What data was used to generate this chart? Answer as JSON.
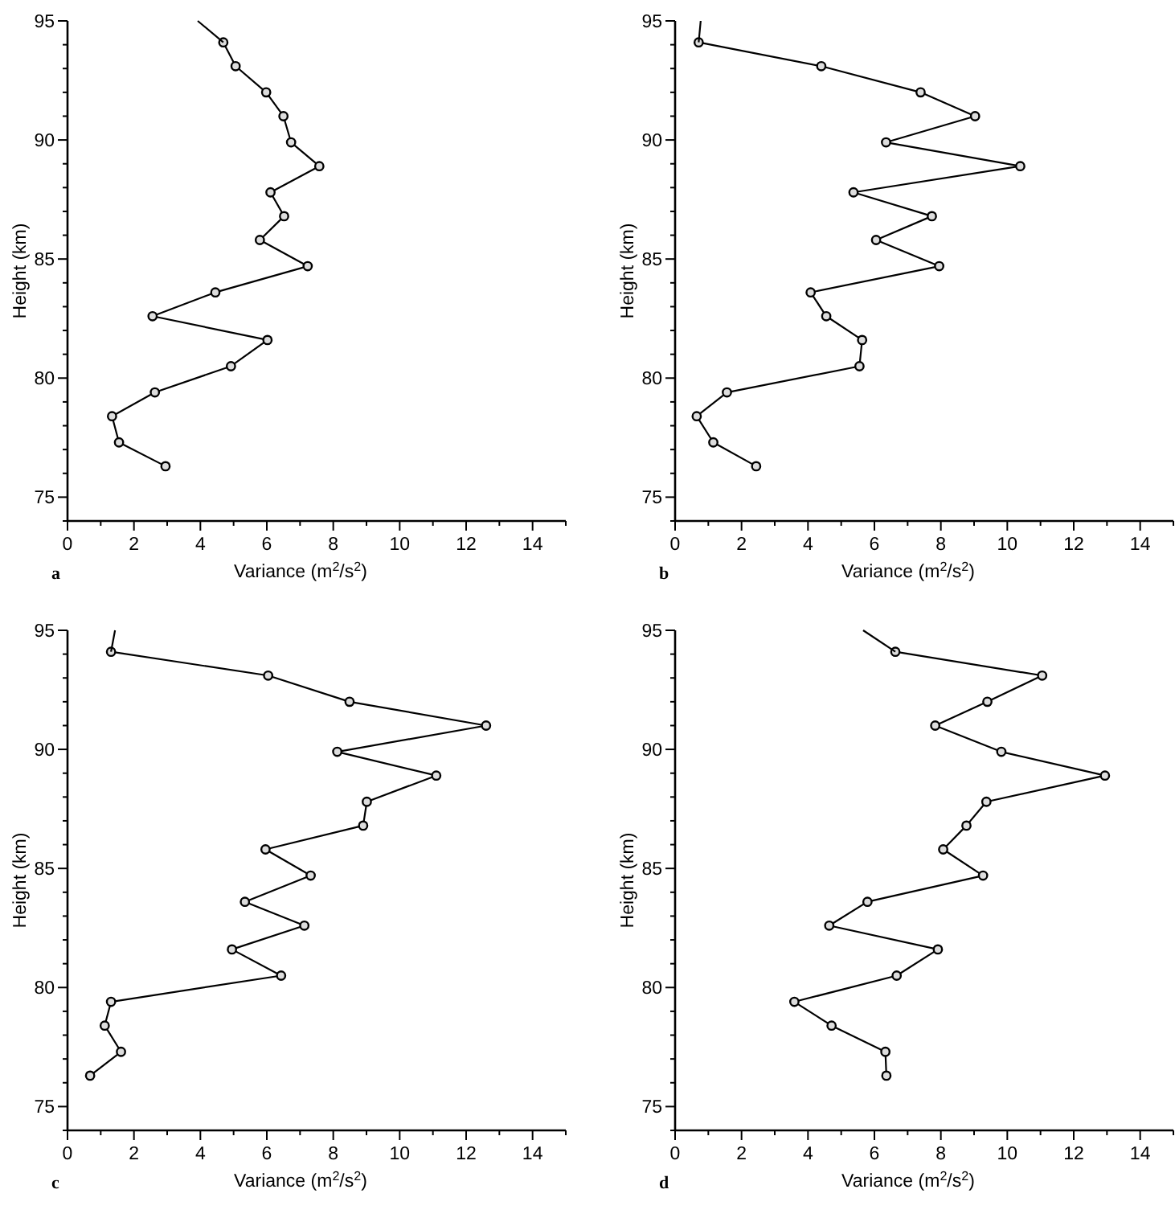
{
  "chart_data": [
    {
      "type": "line",
      "xlabel": "Variance (m$^{2}$/s$^{2}$)",
      "ylabel": "Height (km)",
      "annotations": [
        "a"
      ],
      "xlim": [
        0,
        15
      ],
      "xticks": [
        0,
        {
          "value": 1,
          "label": null
        },
        2,
        {
          "value": 3,
          "label": null
        },
        4,
        {
          "value": 5,
          "label": null
        },
        6,
        {
          "value": 7,
          "label": null
        },
        8,
        {
          "value": 9,
          "label": null
        },
        10,
        {
          "value": 11,
          "label": null
        },
        12,
        {
          "value": 13,
          "label": null
        },
        14,
        {
          "value": 15,
          "label": null
        }
      ],
      "ylim": [
        74,
        95
      ],
      "yticks": [
        {
          "value": 74,
          "label": null
        },
        75,
        {
          "value": 76,
          "label": null
        },
        {
          "value": 77,
          "label": null
        },
        {
          "value": 78,
          "label": null
        },
        {
          "value": 79,
          "label": null
        },
        80,
        {
          "value": 81,
          "label": null
        },
        {
          "value": 82,
          "label": null
        },
        {
          "value": 83,
          "label": null
        },
        {
          "value": 84,
          "label": null
        },
        85,
        {
          "value": 86,
          "label": null
        },
        {
          "value": 87,
          "label": null
        },
        {
          "value": 88,
          "label": null
        },
        {
          "value": 89,
          "label": null
        },
        90,
        {
          "value": 91,
          "label": null
        },
        {
          "value": 92,
          "label": null
        },
        {
          "value": 93,
          "label": null
        },
        {
          "value": 94,
          "label": null
        },
        95
      ],
      "series": [
        {
          "color": "#000000",
          "marker": "circle",
          "x": [
            2.95,
            1.55,
            1.34,
            2.63,
            4.92,
            6.02,
            2.56,
            4.45,
            7.23,
            5.79,
            6.52,
            6.11,
            7.58,
            6.73,
            6.5,
            5.98,
            5.06,
            4.69
          ],
          "values": [
            76.3,
            77.3,
            78.4,
            79.4,
            80.5,
            81.6,
            82.6,
            83.6,
            84.7,
            85.8,
            86.8,
            87.8,
            88.9,
            89.9,
            91.0,
            92.0,
            93.1,
            94.1
          ]
        },
        {
          "color": "#000000",
          "marker": "none",
          "x": [
            4.69,
            3.92
          ],
          "values": [
            94.1,
            95.0
          ]
        }
      ]
    },
    {
      "type": "line",
      "xlabel": "Variance (m$^{2}$/s$^{2}$)",
      "ylabel": "Height (km)",
      "annotations": [
        "b"
      ],
      "xlim": [
        0,
        15
      ],
      "xticks": [
        0,
        {
          "value": 1,
          "label": null
        },
        2,
        {
          "value": 3,
          "label": null
        },
        4,
        {
          "value": 5,
          "label": null
        },
        6,
        {
          "value": 7,
          "label": null
        },
        8,
        {
          "value": 9,
          "label": null
        },
        10,
        {
          "value": 11,
          "label": null
        },
        12,
        {
          "value": 13,
          "label": null
        },
        14,
        {
          "value": 15,
          "label": null
        }
      ],
      "ylim": [
        74,
        95
      ],
      "yticks": [
        {
          "value": 74,
          "label": null
        },
        75,
        {
          "value": 76,
          "label": null
        },
        {
          "value": 77,
          "label": null
        },
        {
          "value": 78,
          "label": null
        },
        {
          "value": 79,
          "label": null
        },
        80,
        {
          "value": 81,
          "label": null
        },
        {
          "value": 82,
          "label": null
        },
        {
          "value": 83,
          "label": null
        },
        {
          "value": 84,
          "label": null
        },
        85,
        {
          "value": 86,
          "label": null
        },
        {
          "value": 87,
          "label": null
        },
        {
          "value": 88,
          "label": null
        },
        {
          "value": 89,
          "label": null
        },
        90,
        {
          "value": 91,
          "label": null
        },
        {
          "value": 92,
          "label": null
        },
        {
          "value": 93,
          "label": null
        },
        {
          "value": 94,
          "label": null
        },
        95
      ],
      "series": [
        {
          "color": "#000000",
          "marker": "circle",
          "x": [
            2.44,
            1.15,
            0.65,
            1.56,
            5.55,
            5.63,
            4.55,
            4.08,
            7.95,
            6.05,
            7.73,
            5.37,
            10.39,
            6.35,
            9.03,
            7.39,
            4.4,
            0.71
          ],
          "values": [
            76.3,
            77.3,
            78.4,
            79.4,
            80.5,
            81.6,
            82.6,
            83.6,
            84.7,
            85.8,
            86.8,
            87.8,
            88.9,
            89.9,
            91.0,
            92.0,
            93.1,
            94.1
          ]
        },
        {
          "color": "#000000",
          "marker": "none",
          "x": [
            0.71,
            0.77
          ],
          "values": [
            94.1,
            95.0
          ]
        }
      ]
    },
    {
      "type": "line",
      "xlabel": "Variance (m$^{2}$/s$^{2}$)",
      "ylabel": "Height (km)",
      "annotations": [
        "c"
      ],
      "xlim": [
        0,
        15
      ],
      "xticks": [
        0,
        {
          "value": 1,
          "label": null
        },
        2,
        {
          "value": 3,
          "label": null
        },
        4,
        {
          "value": 5,
          "label": null
        },
        6,
        {
          "value": 7,
          "label": null
        },
        8,
        {
          "value": 9,
          "label": null
        },
        10,
        {
          "value": 11,
          "label": null
        },
        12,
        {
          "value": 13,
          "label": null
        },
        14,
        {
          "value": 15,
          "label": null
        }
      ],
      "ylim": [
        74,
        95
      ],
      "yticks": [
        {
          "value": 74,
          "label": null
        },
        75,
        {
          "value": 76,
          "label": null
        },
        {
          "value": 77,
          "label": null
        },
        {
          "value": 78,
          "label": null
        },
        {
          "value": 79,
          "label": null
        },
        80,
        {
          "value": 81,
          "label": null
        },
        {
          "value": 82,
          "label": null
        },
        {
          "value": 83,
          "label": null
        },
        {
          "value": 84,
          "label": null
        },
        85,
        {
          "value": 86,
          "label": null
        },
        {
          "value": 87,
          "label": null
        },
        {
          "value": 88,
          "label": null
        },
        {
          "value": 89,
          "label": null
        },
        90,
        {
          "value": 91,
          "label": null
        },
        {
          "value": 92,
          "label": null
        },
        {
          "value": 93,
          "label": null
        },
        {
          "value": 94,
          "label": null
        },
        95
      ],
      "series": [
        {
          "color": "#000000",
          "marker": "circle",
          "x": [
            0.68,
            1.61,
            1.12,
            1.31,
            6.43,
            4.95,
            7.13,
            5.34,
            7.32,
            5.96,
            8.9,
            9.01,
            11.1,
            8.12,
            12.6,
            8.49,
            6.04,
            1.31
          ],
          "values": [
            76.3,
            77.3,
            78.4,
            79.4,
            80.5,
            81.6,
            82.6,
            83.6,
            84.7,
            85.8,
            86.8,
            87.8,
            88.9,
            89.9,
            91.0,
            92.0,
            93.1,
            94.1
          ]
        },
        {
          "color": "#000000",
          "marker": "none",
          "x": [
            1.31,
            1.43
          ],
          "values": [
            94.1,
            95.0
          ]
        }
      ]
    },
    {
      "type": "line",
      "xlabel": "Variance (m$^{2}$/s$^{2}$)",
      "ylabel": "Height (km)",
      "annotations": [
        "d"
      ],
      "xlim": [
        0,
        15
      ],
      "xticks": [
        0,
        {
          "value": 1,
          "label": null
        },
        2,
        {
          "value": 3,
          "label": null
        },
        4,
        {
          "value": 5,
          "label": null
        },
        6,
        {
          "value": 7,
          "label": null
        },
        8,
        {
          "value": 9,
          "label": null
        },
        10,
        {
          "value": 11,
          "label": null
        },
        12,
        {
          "value": 13,
          "label": null
        },
        14,
        {
          "value": 15,
          "label": null
        }
      ],
      "ylim": [
        74,
        95
      ],
      "yticks": [
        {
          "value": 74,
          "label": null
        },
        75,
        {
          "value": 76,
          "label": null
        },
        {
          "value": 77,
          "label": null
        },
        {
          "value": 78,
          "label": null
        },
        {
          "value": 79,
          "label": null
        },
        80,
        {
          "value": 81,
          "label": null
        },
        {
          "value": 82,
          "label": null
        },
        {
          "value": 83,
          "label": null
        },
        {
          "value": 84,
          "label": null
        },
        85,
        {
          "value": 86,
          "label": null
        },
        {
          "value": 87,
          "label": null
        },
        {
          "value": 88,
          "label": null
        },
        {
          "value": 89,
          "label": null
        },
        90,
        {
          "value": 91,
          "label": null
        },
        {
          "value": 92,
          "label": null
        },
        {
          "value": 93,
          "label": null
        },
        {
          "value": 94,
          "label": null
        },
        95
      ],
      "series": [
        {
          "color": "#000000",
          "marker": "circle",
          "x": [
            6.36,
            6.33,
            4.71,
            3.59,
            6.67,
            7.91,
            4.64,
            5.79,
            9.27,
            8.07,
            8.77,
            9.37,
            12.94,
            9.82,
            7.83,
            9.4,
            11.05,
            6.63
          ],
          "values": [
            76.3,
            77.3,
            78.4,
            79.4,
            80.5,
            81.6,
            82.6,
            83.6,
            84.7,
            85.8,
            86.8,
            87.8,
            88.9,
            89.9,
            91.0,
            92.0,
            93.1,
            94.1
          ]
        },
        {
          "color": "#000000",
          "marker": "none",
          "x": [
            6.63,
            5.66
          ],
          "values": [
            94.1,
            95.0
          ]
        }
      ]
    }
  ]
}
